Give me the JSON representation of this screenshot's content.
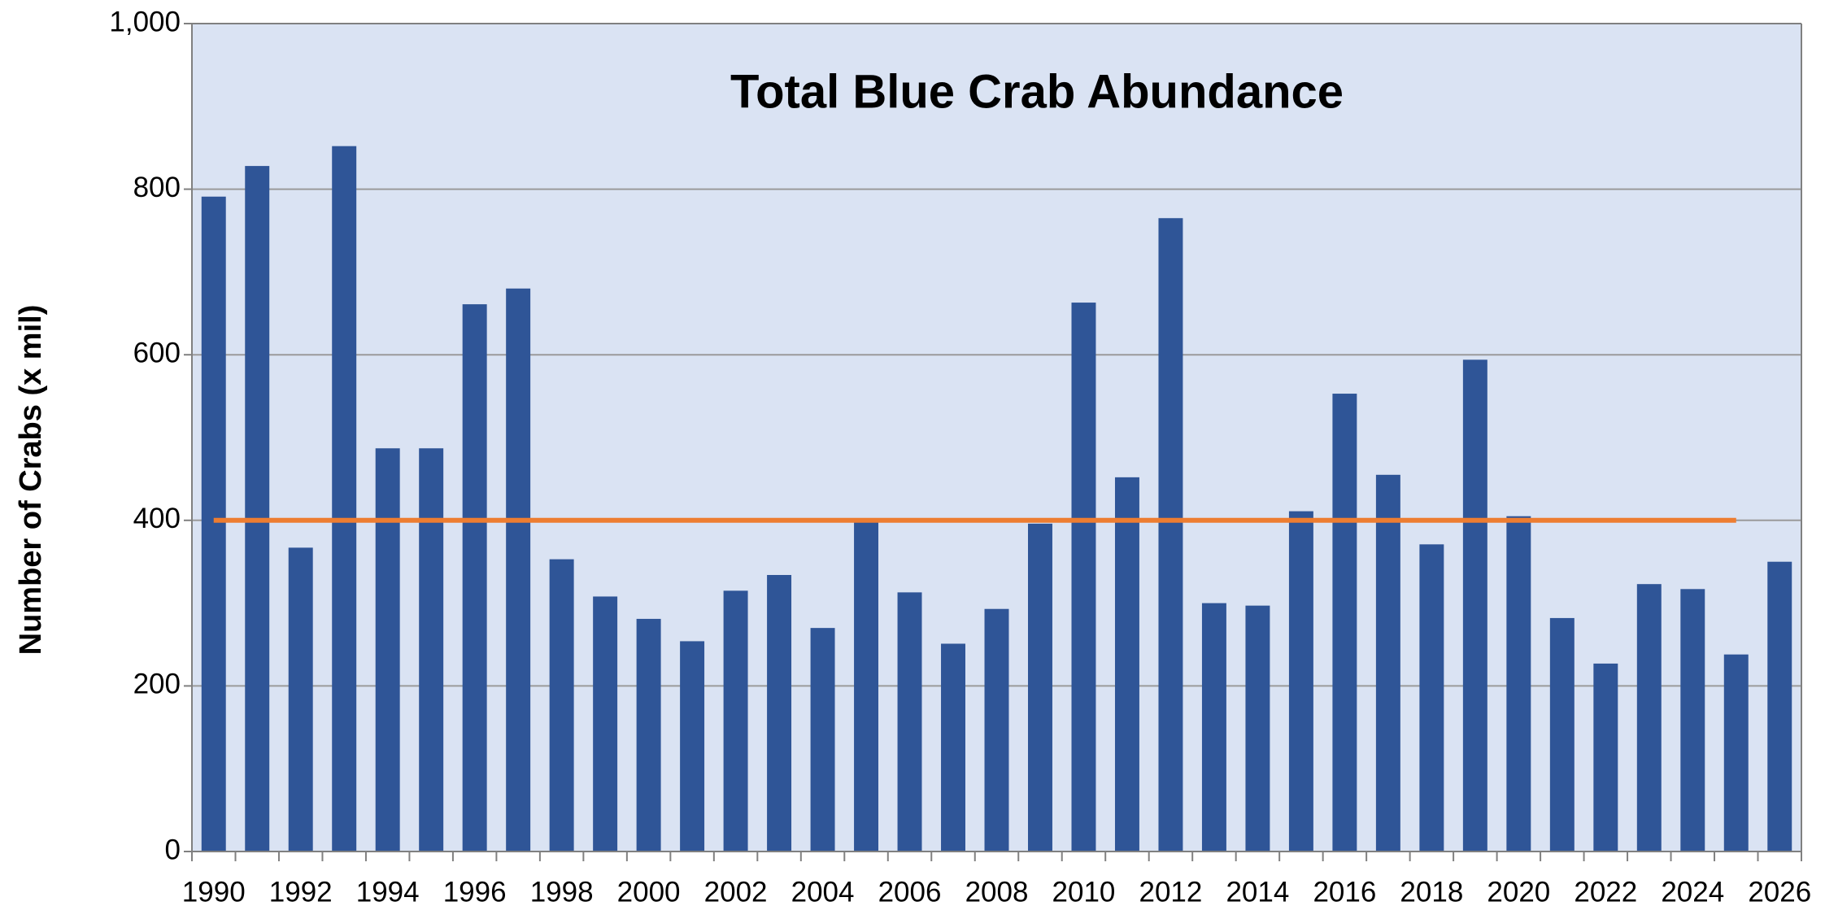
{
  "chart_data": {
    "type": "bar",
    "title": "Total Blue Crab Abundance",
    "y_label": "Number of Crabs (x mil)",
    "categories": [
      1990,
      null,
      1992,
      null,
      1994,
      null,
      1996,
      null,
      1998,
      null,
      2000,
      null,
      2002,
      null,
      2004,
      null,
      2006,
      null,
      2008,
      null,
      2010,
      null,
      2012,
      null,
      2014,
      null,
      2016,
      null,
      2018,
      null,
      2020,
      null,
      2022,
      null,
      2024,
      null,
      2026
    ],
    "values": [
      791,
      828,
      367,
      852,
      487,
      487,
      661,
      680,
      353,
      308,
      281,
      254,
      315,
      334,
      270,
      400,
      313,
      251,
      293,
      396,
      663,
      452,
      765,
      300,
      297,
      411,
      553,
      455,
      371,
      594,
      405,
      282,
      227,
      323,
      317,
      238,
      350
    ],
    "color": "#2f5597",
    "reference_line": {
      "value": 400,
      "color": "#ed7d31"
    },
    "ylim": [
      0,
      1000
    ],
    "yticks": [
      0,
      200,
      400,
      600,
      800,
      {
        "value": 1000,
        "label": "1,000"
      }
    ],
    "grid": true
  }
}
